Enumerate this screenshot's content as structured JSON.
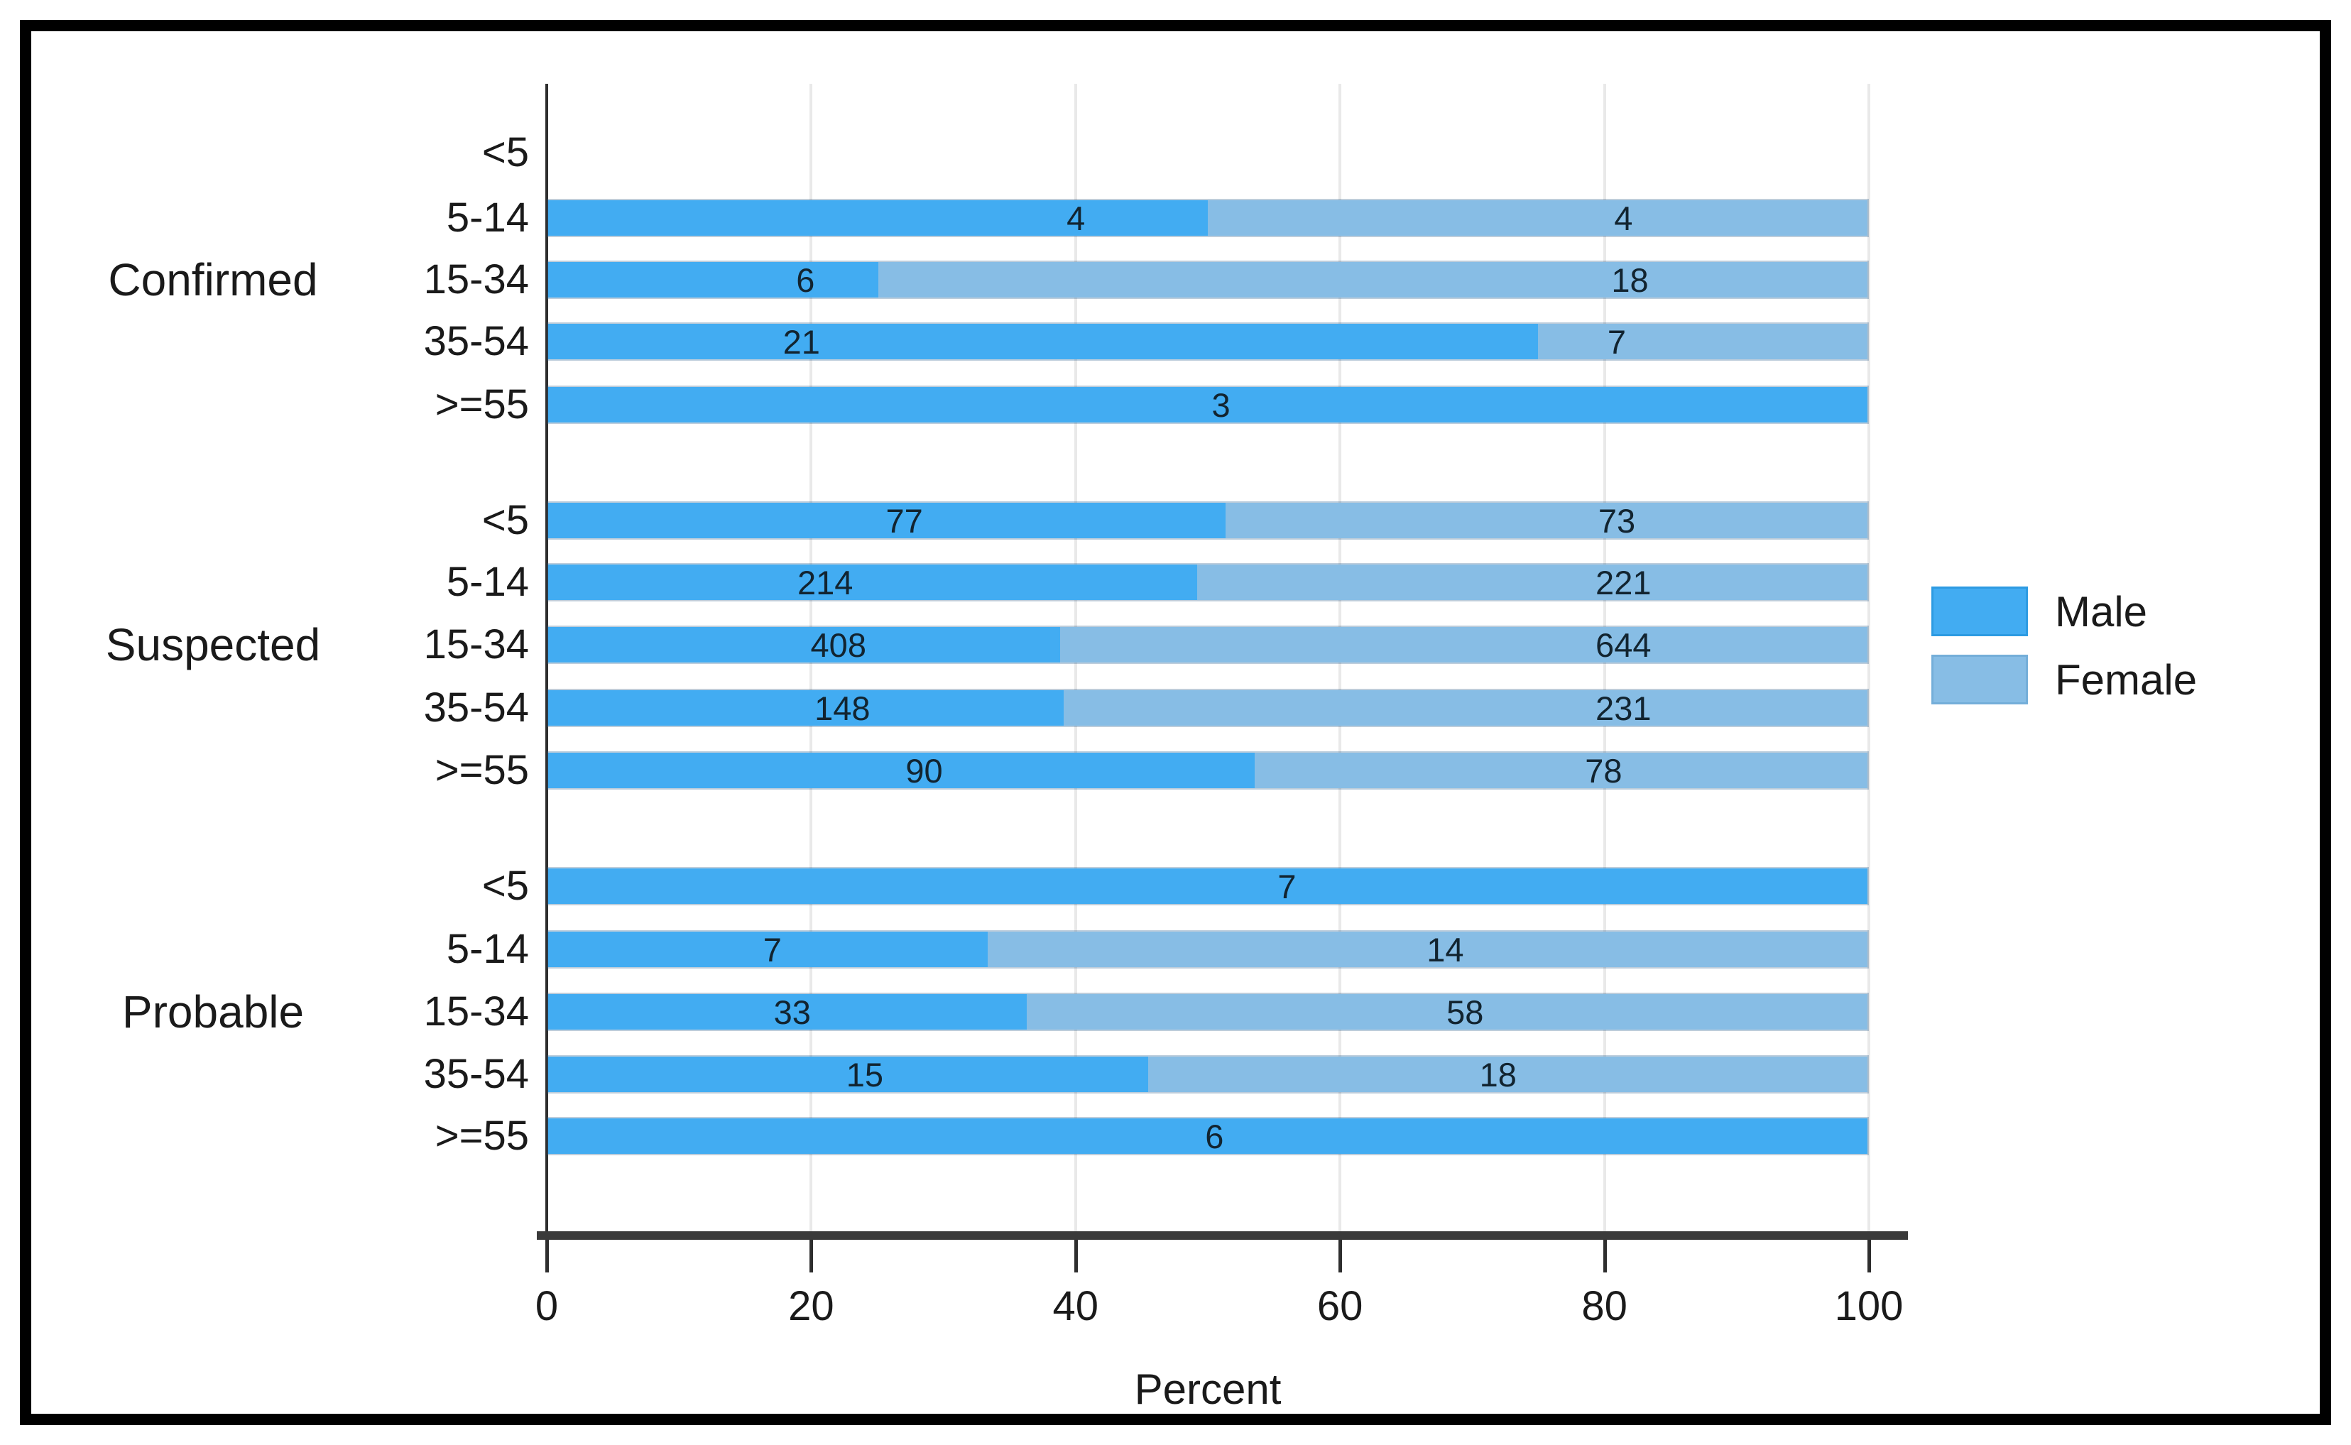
{
  "figure": {
    "xlabel": "Percent",
    "legend": {
      "male_label": "Male",
      "female_label": "Female"
    },
    "colors": {
      "male": "#42acf2",
      "female": "#87bde5",
      "axis": "#2e2e2e",
      "grid": "#e9e9e9",
      "text": "#1a1a1a",
      "frame": "#000000"
    }
  },
  "chart_data": {
    "type": "bar",
    "orientation": "horizontal",
    "stacking": "percent",
    "title": "",
    "xlabel": "Percent",
    "xlim": [
      0,
      100
    ],
    "x_ticks": [
      0,
      20,
      40,
      60,
      80,
      100
    ],
    "grid": "vertical-light",
    "legend_position": "right",
    "series_names": [
      "Male",
      "Female"
    ],
    "age_categories": [
      "<5",
      "5-14",
      "15-34",
      "35-54",
      ">=55"
    ],
    "groups": [
      {
        "name": "Confirmed",
        "rows": [
          {
            "age": "<5",
            "male": null,
            "female": null,
            "male_label_x": null,
            "female_label_x": null
          },
          {
            "age": "5-14",
            "male": 4,
            "female": 4,
            "male_label_x": 40,
            "female_label_x": 81.5
          },
          {
            "age": "15-34",
            "male": 6,
            "female": 18,
            "male_label_x": 19.5,
            "female_label_x": 82
          },
          {
            "age": "35-54",
            "male": 21,
            "female": 7,
            "male_label_x": 19.2,
            "female_label_x": 81
          },
          {
            "age": ">=55",
            "male": 3,
            "female": null,
            "male_label_x": 51,
            "female_label_x": null
          }
        ]
      },
      {
        "name": "Suspected",
        "rows": [
          {
            "age": "<5",
            "male": 77,
            "female": 73,
            "male_label_x": 27,
            "female_label_x": 81
          },
          {
            "age": "5-14",
            "male": 214,
            "female": 221,
            "male_label_x": 21,
            "female_label_x": 81.5
          },
          {
            "age": "15-34",
            "male": 408,
            "female": 644,
            "male_label_x": 22,
            "female_label_x": 81.5
          },
          {
            "age": "35-54",
            "male": 148,
            "female": 231,
            "male_label_x": 22.3,
            "female_label_x": 81.5
          },
          {
            "age": ">=55",
            "male": 90,
            "female": 78,
            "male_label_x": 28.5,
            "female_label_x": 80
          }
        ]
      },
      {
        "name": "Probable",
        "rows": [
          {
            "age": "<5",
            "male": 7,
            "female": null,
            "male_label_x": 56,
            "female_label_x": null
          },
          {
            "age": "5-14",
            "male": 7,
            "female": 14,
            "male_label_x": 17,
            "female_label_x": 68
          },
          {
            "age": "15-34",
            "male": 33,
            "female": 58,
            "male_label_x": 18.5,
            "female_label_x": 69.5
          },
          {
            "age": "35-54",
            "male": 15,
            "female": 18,
            "male_label_x": 24,
            "female_label_x": 72
          },
          {
            "age": ">=55",
            "male": 6,
            "female": null,
            "male_label_x": 50.5,
            "female_label_x": null
          }
        ]
      }
    ]
  }
}
